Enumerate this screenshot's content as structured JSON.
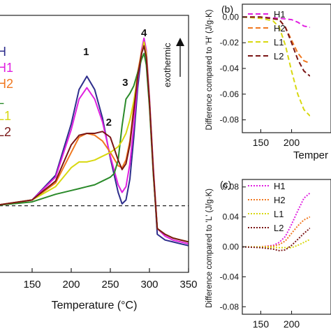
{
  "chart_data": [
    {
      "panel": "a",
      "type": "line",
      "xlabel": "Temperature (°C)",
      "ylabel": "",
      "xlim": [
        100,
        350
      ],
      "ylim": [
        -0.35,
        1.0
      ],
      "xticks": [
        150,
        200,
        250,
        300,
        350
      ],
      "annotation": "exothermic",
      "baseline_y": 0,
      "peak_labels": [
        {
          "text": "1",
          "x": 219,
          "y": 0.79
        },
        {
          "text": "2",
          "x": 248,
          "y": 0.42
        },
        {
          "text": "3",
          "x": 269,
          "y": 0.63
        },
        {
          "text": "4",
          "x": 293,
          "y": 0.89
        }
      ],
      "legend": [
        "H",
        "H1",
        "H2",
        "L",
        "L1",
        "L2"
      ],
      "series": [
        {
          "name": "H",
          "color": "#2e2e8c",
          "x": [
            100,
            150,
            180,
            200,
            210,
            220,
            230,
            240,
            250,
            260,
            265,
            270,
            275,
            280,
            285,
            290,
            293,
            296,
            300,
            305,
            310,
            320,
            330,
            340,
            350
          ],
          "y": [
            0,
            0.03,
            0.16,
            0.43,
            0.61,
            0.68,
            0.61,
            0.46,
            0.25,
            0.07,
            0.01,
            0.03,
            0.14,
            0.36,
            0.62,
            0.8,
            0.86,
            0.8,
            0.55,
            0.18,
            -0.15,
            -0.18,
            -0.19,
            -0.2,
            -0.21
          ]
        },
        {
          "name": "H1",
          "color": "#e020e0",
          "x": [
            100,
            150,
            180,
            200,
            210,
            220,
            230,
            240,
            250,
            260,
            265,
            270,
            275,
            280,
            285,
            290,
            293,
            296,
            300,
            305,
            310,
            320,
            330,
            340,
            350
          ],
          "y": [
            0,
            0.03,
            0.15,
            0.4,
            0.56,
            0.62,
            0.56,
            0.44,
            0.26,
            0.11,
            0.07,
            0.1,
            0.22,
            0.42,
            0.66,
            0.82,
            0.88,
            0.82,
            0.57,
            0.2,
            -0.12,
            -0.16,
            -0.18,
            -0.19,
            -0.2
          ]
        },
        {
          "name": "H2",
          "color": "#f07820",
          "x": [
            100,
            150,
            180,
            200,
            210,
            220,
            230,
            240,
            250,
            260,
            265,
            270,
            275,
            280,
            285,
            290,
            293,
            296,
            300,
            305,
            310,
            320,
            330,
            340,
            350
          ],
          "y": [
            0,
            0.03,
            0.12,
            0.28,
            0.36,
            0.38,
            0.37,
            0.34,
            0.28,
            0.21,
            0.2,
            0.24,
            0.34,
            0.52,
            0.7,
            0.81,
            0.84,
            0.78,
            0.55,
            0.18,
            -0.12,
            -0.15,
            -0.17,
            -0.18,
            -0.19
          ]
        },
        {
          "name": "L",
          "color": "#2a8a2a",
          "x": [
            100,
            150,
            180,
            200,
            210,
            220,
            230,
            240,
            250,
            255,
            260,
            265,
            270,
            275,
            280,
            285,
            290,
            293,
            296,
            300,
            305,
            310,
            320,
            330,
            340,
            350
          ],
          "y": [
            0,
            0.02,
            0.06,
            0.08,
            0.09,
            0.1,
            0.11,
            0.13,
            0.15,
            0.17,
            0.24,
            0.42,
            0.56,
            0.59,
            0.63,
            0.7,
            0.77,
            0.8,
            0.74,
            0.52,
            0.16,
            -0.12,
            -0.15,
            -0.17,
            -0.18,
            -0.19
          ]
        },
        {
          "name": "L1",
          "color": "#d8d810",
          "x": [
            100,
            150,
            180,
            200,
            210,
            220,
            230,
            240,
            250,
            260,
            265,
            270,
            275,
            280,
            285,
            290,
            293,
            296,
            300,
            305,
            310,
            320,
            330,
            340,
            350
          ],
          "y": [
            0,
            0.03,
            0.1,
            0.2,
            0.23,
            0.23,
            0.24,
            0.26,
            0.28,
            0.31,
            0.34,
            0.38,
            0.45,
            0.55,
            0.68,
            0.8,
            0.86,
            0.8,
            0.55,
            0.18,
            -0.12,
            -0.15,
            -0.17,
            -0.18,
            -0.19
          ]
        },
        {
          "name": "L2",
          "color": "#7a1616",
          "x": [
            100,
            150,
            180,
            200,
            210,
            220,
            230,
            240,
            250,
            260,
            265,
            270,
            275,
            280,
            285,
            290,
            293,
            296,
            300,
            305,
            310,
            320,
            330,
            340,
            350
          ],
          "y": [
            0,
            0.03,
            0.13,
            0.32,
            0.37,
            0.38,
            0.38,
            0.39,
            0.36,
            0.24,
            0.19,
            0.22,
            0.32,
            0.5,
            0.68,
            0.8,
            0.84,
            0.78,
            0.55,
            0.18,
            -0.12,
            -0.15,
            -0.17,
            -0.18,
            -0.19
          ]
        }
      ]
    },
    {
      "panel": "b",
      "panel_label": "(b)",
      "type": "line",
      "xlabel": "Temper",
      "ylabel": "Difference compared to 'H' (J/g·K)",
      "xlim": [
        120,
        230
      ],
      "ylim": [
        -0.09,
        0.01
      ],
      "xticks": [
        150,
        200
      ],
      "yticks": [
        0.0,
        -0.02,
        -0.04,
        -0.06,
        -0.08
      ],
      "ytick_labels": [
        "0.00",
        "-0.02",
        "-0.04",
        "-0.06",
        "-0.08"
      ],
      "line_style": "dashed",
      "legend": [
        "H1",
        "H2",
        "L1",
        "L2"
      ],
      "series": [
        {
          "name": "H1",
          "color": "#e020e0",
          "x": [
            120,
            150,
            180,
            200,
            210,
            220,
            230
          ],
          "y": [
            0,
            0,
            -0.001,
            -0.002,
            -0.004,
            -0.007,
            -0.008
          ]
        },
        {
          "name": "H2",
          "color": "#f07820",
          "x": [
            120,
            150,
            180,
            190,
            200,
            210,
            220,
            230
          ],
          "y": [
            0,
            0,
            -0.002,
            -0.008,
            -0.018,
            -0.028,
            -0.034,
            -0.036
          ]
        },
        {
          "name": "L1",
          "color": "#d8d810",
          "x": [
            120,
            150,
            170,
            180,
            190,
            200,
            210,
            220,
            230
          ],
          "y": [
            0,
            -0.001,
            -0.003,
            -0.008,
            -0.022,
            -0.042,
            -0.06,
            -0.072,
            -0.077
          ]
        },
        {
          "name": "L2",
          "color": "#7a1616",
          "x": [
            120,
            150,
            180,
            190,
            200,
            210,
            220,
            230
          ],
          "y": [
            0,
            0,
            -0.002,
            -0.008,
            -0.02,
            -0.033,
            -0.042,
            -0.046
          ]
        }
      ]
    },
    {
      "panel": "c",
      "panel_label": "(c)",
      "type": "line",
      "xlabel": "Temper",
      "ylabel": "Difference compared to 'L' (J/g·K)",
      "xlim": [
        120,
        230
      ],
      "ylim": [
        -0.09,
        0.09
      ],
      "xticks": [
        150,
        200
      ],
      "yticks": [
        0.08,
        0.04,
        0.0,
        -0.04,
        -0.08
      ],
      "ytick_labels": [
        "0.08",
        "0.04",
        "0.00",
        "-0.04",
        "-0.08"
      ],
      "line_style": "dotted",
      "legend": [
        "H1",
        "H2",
        "L1",
        "L2"
      ],
      "series": [
        {
          "name": "H1",
          "color": "#e020e0",
          "x": [
            120,
            150,
            170,
            180,
            190,
            200,
            210,
            220,
            230
          ],
          "y": [
            0,
            0,
            0.002,
            0.006,
            0.014,
            0.03,
            0.048,
            0.065,
            0.072
          ]
        },
        {
          "name": "H2",
          "color": "#f07820",
          "x": [
            120,
            150,
            170,
            180,
            190,
            200,
            210,
            220,
            230
          ],
          "y": [
            0,
            0,
            0.001,
            0.003,
            0.008,
            0.018,
            0.028,
            0.036,
            0.04
          ]
        },
        {
          "name": "L1",
          "color": "#d8d810",
          "x": [
            120,
            150,
            180,
            200,
            210,
            220,
            230
          ],
          "y": [
            0,
            0,
            -0.001,
            -0.001,
            0.002,
            0.006,
            0.01
          ]
        },
        {
          "name": "L2",
          "color": "#7a1616",
          "x": [
            120,
            150,
            170,
            180,
            190,
            200,
            210,
            220,
            230
          ],
          "y": [
            0,
            -0.001,
            -0.003,
            -0.005,
            -0.004,
            0.002,
            0.01,
            0.018,
            0.025
          ]
        }
      ]
    }
  ]
}
